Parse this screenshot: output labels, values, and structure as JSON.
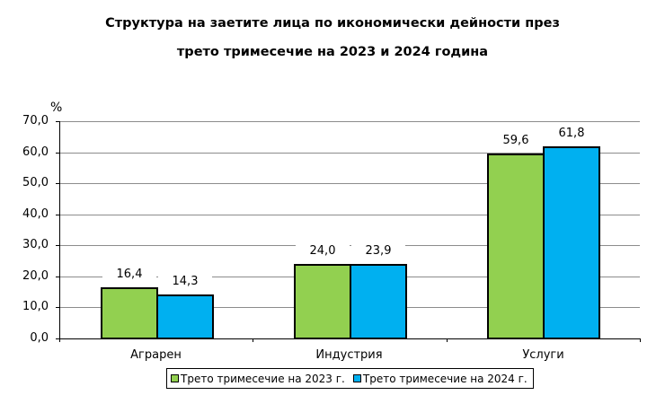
{
  "title": {
    "line1": "Структура на заетите лица по икономически дейности през",
    "line2": "трето тримесечие на 2023 и 2024 година"
  },
  "y_unit": "%",
  "y_ticks": [
    "0,0",
    "10,0",
    "20,0",
    "30,0",
    "40,0",
    "50,0",
    "60,0",
    "70,0"
  ],
  "colors": {
    "series_2023": "#92d050",
    "series_2024": "#00b0f0",
    "grid": "#8c8c8c"
  },
  "legend": {
    "item_2023": "Трето тримесечие на 2023 г.",
    "item_2024": "Трето тримесечие на 2024 г."
  },
  "categories": [
    "Аграрен",
    "Индустрия",
    "Услуги"
  ],
  "value_labels": {
    "s2023": [
      "16,4",
      "24,0",
      "59,6"
    ],
    "s2024": [
      "14,3",
      "23,9",
      "61,8"
    ]
  },
  "chart_data": {
    "type": "bar",
    "title": "Структура на заетите лица по икономически дейности през трето тримесечие на 2023 и 2024 година",
    "xlabel": "",
    "ylabel": "%",
    "categories": [
      "Аграрен",
      "Индустрия",
      "Услуги"
    ],
    "series": [
      {
        "name": "Трето тримесечие на 2023 г.",
        "color": "#92d050",
        "values": [
          16.4,
          24.0,
          59.6
        ]
      },
      {
        "name": "Трето тримесечие на 2024 г.",
        "color": "#00b0f0",
        "values": [
          14.3,
          23.9,
          61.8
        ]
      }
    ],
    "ylim": [
      0,
      70
    ],
    "y_tick_step": 10,
    "grid": true,
    "data_labels": true,
    "legend_position": "bottom"
  }
}
